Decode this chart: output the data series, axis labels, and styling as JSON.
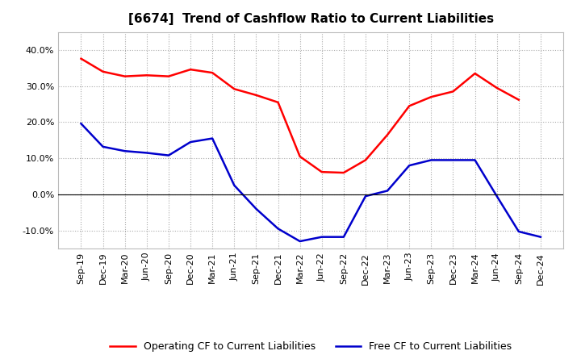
{
  "title": "[6674]  Trend of Cashflow Ratio to Current Liabilities",
  "ylim": [
    -0.15,
    0.45
  ],
  "yticks": [
    -0.1,
    0.0,
    0.1,
    0.2,
    0.3,
    0.4
  ],
  "x_labels": [
    "Sep-19",
    "Dec-19",
    "Mar-20",
    "Jun-20",
    "Sep-20",
    "Dec-20",
    "Mar-21",
    "Jun-21",
    "Sep-21",
    "Dec-21",
    "Mar-22",
    "Jun-22",
    "Sep-22",
    "Dec-22",
    "Mar-23",
    "Jun-23",
    "Sep-23",
    "Dec-23",
    "Mar-24",
    "Jun-24",
    "Sep-24",
    "Dec-24"
  ],
  "operating_cf": [
    0.376,
    0.34,
    0.327,
    0.33,
    0.327,
    0.346,
    0.337,
    0.292,
    0.275,
    0.255,
    0.105,
    0.062,
    0.06,
    0.095,
    0.165,
    0.245,
    0.27,
    0.285,
    0.335,
    0.295,
    0.262,
    null
  ],
  "free_cf": [
    0.196,
    0.132,
    0.12,
    0.115,
    0.108,
    0.145,
    0.155,
    0.025,
    -0.04,
    -0.095,
    -0.13,
    -0.118,
    -0.118,
    -0.005,
    0.01,
    0.08,
    0.095,
    0.095,
    0.095,
    -0.005,
    -0.103,
    -0.118
  ],
  "operating_color": "#ff0000",
  "free_color": "#0000cc",
  "background_color": "#ffffff",
  "grid_color": "#aaaaaa",
  "title_fontsize": 11,
  "legend_fontsize": 9,
  "tick_fontsize": 8,
  "line_width": 1.8
}
